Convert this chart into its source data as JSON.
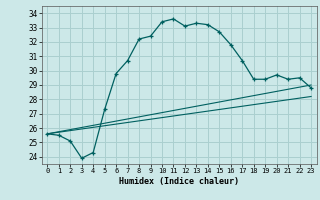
{
  "xlabel": "Humidex (Indice chaleur)",
  "bg_color": "#cce8e8",
  "grid_color": "#aacfcf",
  "line_color": "#006060",
  "xlim": [
    -0.5,
    23.5
  ],
  "ylim": [
    23.5,
    34.5
  ],
  "yticks": [
    24,
    25,
    26,
    27,
    28,
    29,
    30,
    31,
    32,
    33,
    34
  ],
  "xticks": [
    0,
    1,
    2,
    3,
    4,
    5,
    6,
    7,
    8,
    9,
    10,
    11,
    12,
    13,
    14,
    15,
    16,
    17,
    18,
    19,
    20,
    21,
    22,
    23
  ],
  "curve1_x": [
    0,
    1,
    2,
    3,
    4,
    5,
    6,
    7,
    8,
    9,
    10,
    11,
    12,
    13,
    14,
    15,
    16,
    17,
    18,
    19,
    20,
    21,
    22,
    23
  ],
  "curve1_y": [
    25.6,
    25.5,
    25.1,
    23.9,
    24.3,
    27.3,
    29.8,
    30.7,
    32.2,
    32.4,
    33.4,
    33.6,
    33.1,
    33.3,
    33.2,
    32.7,
    31.8,
    30.7,
    29.4,
    29.4,
    29.7,
    29.4,
    29.5,
    28.8
  ],
  "curve2_x": [
    0,
    23
  ],
  "curve2_y": [
    25.6,
    29.0
  ],
  "curve3_x": [
    0,
    23
  ],
  "curve3_y": [
    25.6,
    28.2
  ]
}
